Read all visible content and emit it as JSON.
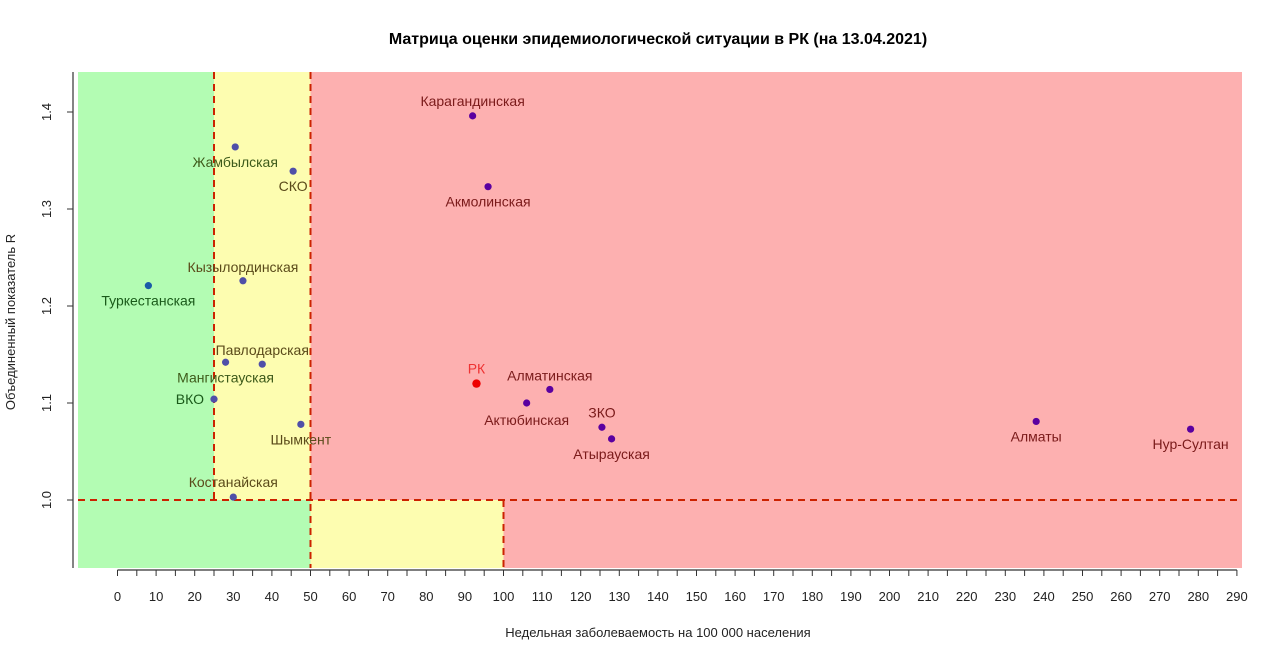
{
  "chart_data": {
    "type": "scatter",
    "title": "Матрица оценки эпидемиологической ситуации в РК (на 13.04.2021)",
    "xlabel": "Недельная заболеваемость на 100 000 населения",
    "ylabel": "Объединенный показатель R",
    "xlim": [
      -10,
      292
    ],
    "ylim": [
      0.93,
      1.44
    ],
    "x_ticks": [
      0,
      10,
      20,
      30,
      40,
      50,
      60,
      70,
      80,
      90,
      100,
      110,
      120,
      130,
      140,
      150,
      160,
      170,
      180,
      190,
      200,
      210,
      220,
      230,
      240,
      250,
      260,
      270,
      280,
      290
    ],
    "y_ticks": [
      1.0,
      1.1,
      1.2,
      1.3,
      1.4
    ],
    "y_tick_labels": [
      "1.0",
      "1.1",
      "1.2",
      "1.3",
      "1.4"
    ],
    "zones": {
      "green": "#b3fcb3",
      "yellow": "#fdfdb0",
      "red": "#fdb0b0",
      "threshold_line": "#cc2200",
      "upper_x_thresholds": [
        25,
        50
      ],
      "lower_x_thresholds": [
        50,
        100
      ],
      "y_threshold": 1.0
    },
    "points": [
      {
        "name": "Карагандинская",
        "x": 92,
        "y": 1.396,
        "color": "#5a00a0",
        "label_color": "#7a1a1a"
      },
      {
        "name": "Жамбылская",
        "x": 30.5,
        "y": 1.364,
        "color": "#4f4fa8",
        "label_color": "#3d5a1a"
      },
      {
        "name": "СКО",
        "x": 45.5,
        "y": 1.339,
        "color": "#4f4fa8",
        "label_color": "#5a4a1a"
      },
      {
        "name": "Акмолинская",
        "x": 96,
        "y": 1.323,
        "color": "#5a00a0",
        "label_color": "#7a1a1a"
      },
      {
        "name": "Кызылординская",
        "x": 32.5,
        "y": 1.226,
        "color": "#4f4fa8",
        "label_color": "#5a4a1a"
      },
      {
        "name": "Туркестанская",
        "x": 8,
        "y": 1.221,
        "color": "#1a5aa8",
        "label_color": "#1a5a1a"
      },
      {
        "name": "Павлодарская",
        "x": 37.5,
        "y": 1.14,
        "color": "#4f4fa8",
        "label_color": "#5a4a1a"
      },
      {
        "name": "Мангистауская",
        "x": 28,
        "y": 1.142,
        "color": "#4f4fa8",
        "label_color": "#3d5a1a"
      },
      {
        "name": "РК",
        "x": 93,
        "y": 1.12,
        "color": "#ee0000",
        "label_color": "#ee3333"
      },
      {
        "name": "Алматинская",
        "x": 112,
        "y": 1.114,
        "color": "#5a00a0",
        "label_color": "#7a1a1a"
      },
      {
        "name": "ВКО",
        "x": 25,
        "y": 1.104,
        "color": "#4f4fa8",
        "label_color": "#1a5a1a"
      },
      {
        "name": "Актюбинская",
        "x": 106,
        "y": 1.1,
        "color": "#5a00a0",
        "label_color": "#7a1a1a"
      },
      {
        "name": "Шымкент",
        "x": 47.5,
        "y": 1.078,
        "color": "#4f4fa8",
        "label_color": "#5a4a1a"
      },
      {
        "name": "ЗКО",
        "x": 125.5,
        "y": 1.075,
        "color": "#5a00a0",
        "label_color": "#7a1a1a"
      },
      {
        "name": "Атырауская",
        "x": 128,
        "y": 1.063,
        "color": "#5a00a0",
        "label_color": "#7a1a1a"
      },
      {
        "name": "Алматы",
        "x": 238,
        "y": 1.081,
        "color": "#5a00a0",
        "label_color": "#7a1a1a"
      },
      {
        "name": "Нур-Султан",
        "x": 278,
        "y": 1.073,
        "color": "#5a00a0",
        "label_color": "#7a1a1a"
      },
      {
        "name": "Костанайская",
        "x": 30,
        "y": 1.003,
        "color": "#4f4fa8",
        "label_color": "#5a4a1a"
      }
    ]
  }
}
